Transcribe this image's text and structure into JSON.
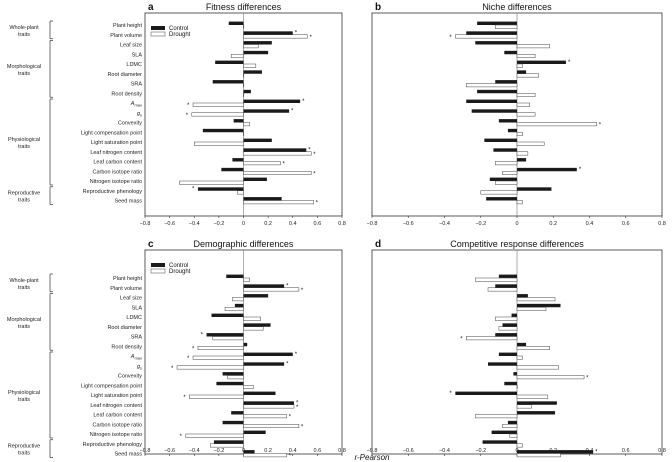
{
  "chart_data": {
    "type": "bar",
    "orientation": "horizontal",
    "x_label": "r-Pearson",
    "xlim": [
      -0.8,
      0.8
    ],
    "xticks": [
      "−0.8",
      "−0.6",
      "−0.4",
      "−0.2",
      "0",
      "0.2",
      "0.4",
      "0.6",
      "0.8"
    ],
    "traits": [
      "Plant height",
      "Plant volume",
      "Leaf size",
      "SLA",
      "LDMC",
      "Root diameter",
      "SRA",
      "Root density",
      "Amax",
      "gs",
      "Convexity",
      "Light compensation point",
      "Light saturation point",
      "Leaf nitrogen content",
      "Leaf carbon content",
      "Carbon isotope ratio",
      "Nitrogen isotope ratio",
      "Reproductive phenology",
      "Seed mass"
    ],
    "groups": [
      {
        "label": "Whole-plant traits",
        "from": 0,
        "to": 1
      },
      {
        "label": "Morphological traits",
        "from": 2,
        "to": 7
      },
      {
        "label": "Physiological traits",
        "from": 8,
        "to": 16
      },
      {
        "label": "Reproductive traits",
        "from": 17,
        "to": 18
      }
    ],
    "legend": [
      "Control",
      "Drought"
    ],
    "panels": [
      {
        "letter": "a",
        "title": "Fitness differences",
        "control": [
          -0.12,
          0.4,
          0.23,
          0.2,
          -0.23,
          0.15,
          -0.25,
          0.06,
          0.46,
          0.37,
          -0.08,
          -0.33,
          0.23,
          0.51,
          -0.09,
          -0.18,
          0.19,
          -0.37,
          0.31
        ],
        "drought": [
          0.0,
          0.52,
          0.12,
          -0.1,
          0.1,
          0.0,
          0.0,
          0.0,
          -0.41,
          -0.42,
          0.05,
          0.0,
          -0.4,
          0.55,
          0.3,
          0.55,
          -0.52,
          -0.05,
          0.57
        ],
        "control_sig": [
          false,
          true,
          false,
          false,
          false,
          false,
          false,
          false,
          true,
          true,
          false,
          false,
          false,
          true,
          false,
          false,
          false,
          true,
          false
        ],
        "drought_sig": [
          false,
          true,
          false,
          false,
          false,
          false,
          false,
          false,
          true,
          true,
          false,
          false,
          false,
          true,
          true,
          true,
          false,
          false,
          true
        ]
      },
      {
        "letter": "b",
        "title": "Niche differences",
        "control": [
          -0.22,
          -0.28,
          -0.23,
          -0.07,
          0.27,
          0.05,
          -0.12,
          -0.22,
          -0.28,
          -0.25,
          -0.1,
          -0.05,
          -0.18,
          -0.13,
          0.05,
          0.33,
          -0.15,
          0.19,
          -0.17
        ],
        "drought": [
          -0.12,
          -0.34,
          0.18,
          0.1,
          0.03,
          0.12,
          -0.28,
          0.1,
          0.07,
          0.1,
          0.44,
          0.03,
          0.15,
          0.06,
          -0.12,
          -0.08,
          -0.12,
          -0.2,
          0.03
        ],
        "control_sig": [
          false,
          false,
          false,
          false,
          true,
          false,
          false,
          false,
          false,
          false,
          false,
          false,
          false,
          false,
          false,
          true,
          false,
          false,
          false
        ],
        "drought_sig": [
          false,
          true,
          false,
          false,
          false,
          false,
          false,
          false,
          false,
          false,
          true,
          false,
          false,
          false,
          false,
          false,
          false,
          false,
          false
        ]
      },
      {
        "letter": "c",
        "title": "Demographic differences",
        "control": [
          -0.14,
          0.33,
          0.2,
          -0.07,
          -0.26,
          0.22,
          -0.3,
          0.03,
          0.4,
          0.33,
          -0.17,
          -0.22,
          0.26,
          0.41,
          -0.1,
          -0.17,
          0.18,
          -0.24,
          0.09
        ],
        "drought": [
          0.05,
          0.45,
          -0.09,
          -0.15,
          0.14,
          0.16,
          -0.25,
          -0.37,
          -0.41,
          -0.54,
          -0.13,
          0.08,
          -0.44,
          0.41,
          0.35,
          0.45,
          -0.47,
          -0.27,
          0.35
        ],
        "control_sig": [
          false,
          true,
          false,
          false,
          false,
          false,
          true,
          false,
          true,
          true,
          false,
          false,
          false,
          true,
          false,
          false,
          false,
          false,
          false
        ],
        "drought_sig": [
          false,
          true,
          false,
          false,
          false,
          false,
          false,
          true,
          true,
          true,
          false,
          false,
          true,
          true,
          true,
          true,
          true,
          false,
          true
        ]
      },
      {
        "letter": "d",
        "title": "Competitive response differences",
        "control": [
          -0.1,
          -0.12,
          0.06,
          0.24,
          -0.03,
          -0.08,
          -0.12,
          0.05,
          -0.1,
          -0.16,
          -0.02,
          -0.07,
          -0.34,
          0.22,
          0.21,
          -0.05,
          -0.14,
          -0.19,
          0.42
        ],
        "drought": [
          -0.23,
          -0.16,
          0.21,
          0.16,
          -0.12,
          -0.1,
          -0.28,
          0.18,
          0.03,
          0.23,
          0.37,
          0.0,
          0.17,
          0.08,
          -0.23,
          -0.08,
          -0.04,
          0.03,
          0.24
        ],
        "control_sig": [
          false,
          false,
          false,
          false,
          false,
          false,
          false,
          false,
          false,
          false,
          false,
          false,
          true,
          false,
          false,
          false,
          false,
          false,
          true
        ],
        "drought_sig": [
          false,
          false,
          false,
          false,
          false,
          false,
          true,
          false,
          false,
          false,
          true,
          false,
          false,
          false,
          false,
          false,
          false,
          false,
          false
        ]
      }
    ]
  }
}
